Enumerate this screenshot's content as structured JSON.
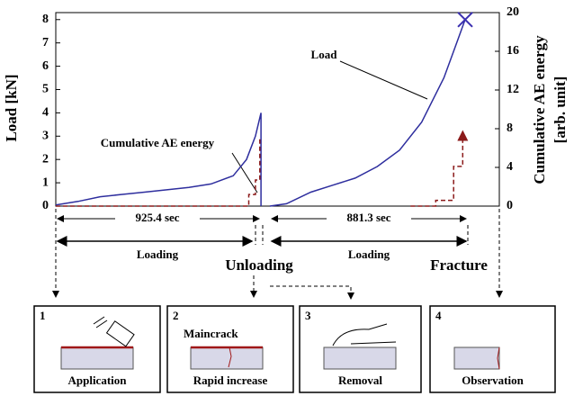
{
  "chart_data": {
    "type": "line",
    "ylabel": "Load [kN]",
    "y2label": [
      "Cumulative AE energy",
      "[arb. unit]"
    ],
    "xlim": [
      0,
      2000
    ],
    "ylim": [
      0,
      8.3
    ],
    "yticks": [
      0,
      1,
      2,
      3,
      4,
      5,
      6,
      7,
      8
    ],
    "y2lim": [
      0,
      20
    ],
    "y2ticks": [
      0,
      4,
      8,
      12,
      16,
      20
    ],
    "series": [
      {
        "name": "Load",
        "color": "#2e2e9e",
        "x": [
          0,
          100,
          200,
          300,
          400,
          500,
          600,
          700,
          800,
          860,
          900,
          925.4,
          925.4,
          null,
          965,
          1040,
          1150,
          1250,
          1350,
          1450,
          1550,
          1650,
          1750,
          1800,
          1846
        ],
        "values": [
          0.05,
          0.2,
          0.4,
          0.5,
          0.6,
          0.7,
          0.8,
          0.95,
          1.3,
          2.0,
          3.0,
          4.0,
          0,
          null,
          0,
          0.1,
          0.6,
          0.9,
          1.2,
          1.7,
          2.4,
          3.6,
          5.5,
          6.8,
          8.0
        ]
      },
      {
        "name": "Cumulative AE energy",
        "color": "#8b1a1a",
        "axis": "y2",
        "x": [
          0,
          870,
          870,
          900,
          900,
          920,
          920,
          null,
          1600,
          1713,
          1713,
          1794,
          1794,
          1835,
          1835
        ],
        "values": [
          0,
          0,
          1.2,
          1.2,
          2.7,
          2.7,
          6.9,
          null,
          0,
          0,
          0.6,
          0.6,
          4.1,
          4.1,
          7.3
        ]
      }
    ],
    "durations": [
      "925.4 sec",
      "881.3 sec"
    ]
  },
  "timeline": [
    "Loading",
    "Unloading",
    "Loading",
    "Fracture"
  ],
  "steps": [
    {
      "number": "1",
      "caption": "Application"
    },
    {
      "number": "2",
      "caption": "Rapid increase",
      "note": "Maincrack"
    },
    {
      "number": "3",
      "caption": "Removal"
    },
    {
      "number": "4",
      "caption": "Observation"
    }
  ]
}
